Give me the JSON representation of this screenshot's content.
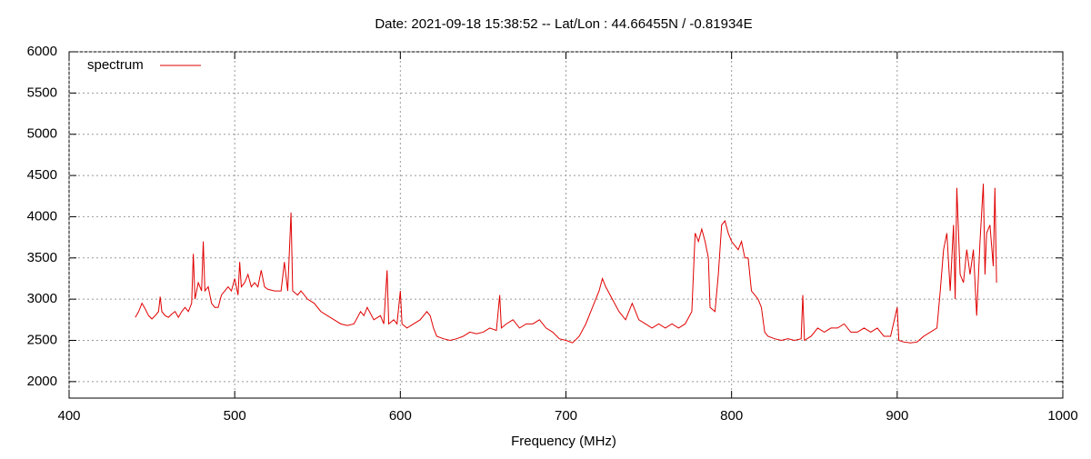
{
  "chart_data": {
    "type": "line",
    "title": "Date: 2021-09-18 15:38:52  --  Lat/Lon : 44.66455N / -0.81934E",
    "x_label": "Frequency (MHz)",
    "x": [
      440,
      442,
      444,
      446,
      448,
      450,
      452,
      454,
      455,
      456,
      458,
      460,
      462,
      464,
      466,
      468,
      470,
      472,
      474,
      475,
      476,
      478,
      480,
      481,
      482,
      484,
      486,
      488,
      490,
      492,
      494,
      496,
      498,
      500,
      502,
      503,
      504,
      506,
      508,
      510,
      512,
      514,
      516,
      518,
      520,
      524,
      528,
      530,
      532,
      534,
      535,
      538,
      540,
      544,
      548,
      552,
      556,
      560,
      564,
      568,
      572,
      576,
      578,
      580,
      584,
      588,
      590,
      592,
      593,
      596,
      598,
      600,
      601,
      604,
      608,
      612,
      616,
      618,
      620,
      622,
      626,
      630,
      634,
      638,
      642,
      646,
      650,
      654,
      658,
      660,
      661,
      664,
      668,
      672,
      676,
      680,
      684,
      688,
      692,
      696,
      700,
      704,
      708,
      712,
      716,
      720,
      722,
      724,
      728,
      732,
      736,
      740,
      744,
      748,
      752,
      756,
      760,
      764,
      768,
      772,
      776,
      778,
      780,
      782,
      784,
      786,
      787,
      790,
      792,
      794,
      796,
      798,
      800,
      804,
      806,
      808,
      810,
      812,
      814,
      816,
      818,
      820,
      822,
      826,
      830,
      834,
      838,
      842,
      843,
      844,
      848,
      852,
      856,
      860,
      864,
      868,
      872,
      876,
      880,
      884,
      888,
      892,
      896,
      900,
      901,
      904,
      908,
      912,
      916,
      920,
      924,
      926,
      928,
      930,
      932,
      934,
      935,
      936,
      938,
      940,
      942,
      944,
      946,
      948,
      950,
      952,
      953,
      954,
      956,
      958,
      959,
      960
    ],
    "series": [
      {
        "name": "spectrum",
        "color": "#e00000",
        "values": [
          2780,
          2850,
          2950,
          2880,
          2800,
          2760,
          2800,
          2850,
          3030,
          2850,
          2800,
          2780,
          2820,
          2850,
          2780,
          2850,
          2900,
          2850,
          2950,
          3550,
          3000,
          3200,
          3100,
          3700,
          3100,
          3150,
          2950,
          2900,
          2900,
          3050,
          3100,
          3150,
          3100,
          3250,
          3050,
          3450,
          3150,
          3200,
          3300,
          3150,
          3200,
          3150,
          3350,
          3150,
          3120,
          3100,
          3100,
          3450,
          3100,
          4050,
          3100,
          3050,
          3100,
          3000,
          2950,
          2850,
          2800,
          2750,
          2700,
          2680,
          2700,
          2850,
          2800,
          2900,
          2750,
          2800,
          2700,
          3350,
          2700,
          2750,
          2700,
          3100,
          2700,
          2650,
          2700,
          2750,
          2850,
          2800,
          2650,
          2550,
          2520,
          2500,
          2520,
          2550,
          2600,
          2580,
          2600,
          2650,
          2620,
          3050,
          2650,
          2700,
          2750,
          2650,
          2700,
          2700,
          2750,
          2650,
          2600,
          2520,
          2500,
          2470,
          2550,
          2700,
          2900,
          3100,
          3250,
          3150,
          3000,
          2850,
          2750,
          2950,
          2750,
          2700,
          2650,
          2700,
          2650,
          2700,
          2650,
          2700,
          2850,
          3800,
          3700,
          3850,
          3700,
          3500,
          2900,
          2850,
          3300,
          3900,
          3950,
          3800,
          3700,
          3600,
          3700,
          3500,
          3500,
          3100,
          3050,
          3000,
          2900,
          2600,
          2550,
          2520,
          2500,
          2520,
          2500,
          2520,
          3050,
          2500,
          2550,
          2650,
          2600,
          2650,
          2650,
          2700,
          2600,
          2600,
          2650,
          2600,
          2650,
          2550,
          2550,
          2900,
          2500,
          2480,
          2470,
          2480,
          2550,
          2600,
          2650,
          3100,
          3600,
          3800,
          3100,
          3900,
          3000,
          4350,
          3300,
          3200,
          3600,
          3300,
          3600,
          2800,
          3700,
          4400,
          3300,
          3800,
          3900,
          3400,
          4350,
          3200
        ]
      }
    ],
    "xlim": [
      400,
      1000
    ],
    "xticks": [
      400,
      500,
      600,
      700,
      800,
      900,
      1000
    ],
    "ylim": [
      1800,
      6000
    ],
    "yticks": [
      2000,
      2500,
      3000,
      3500,
      4000,
      4500,
      5000,
      5500,
      6000
    ],
    "grid": true,
    "legend": "top-left"
  }
}
